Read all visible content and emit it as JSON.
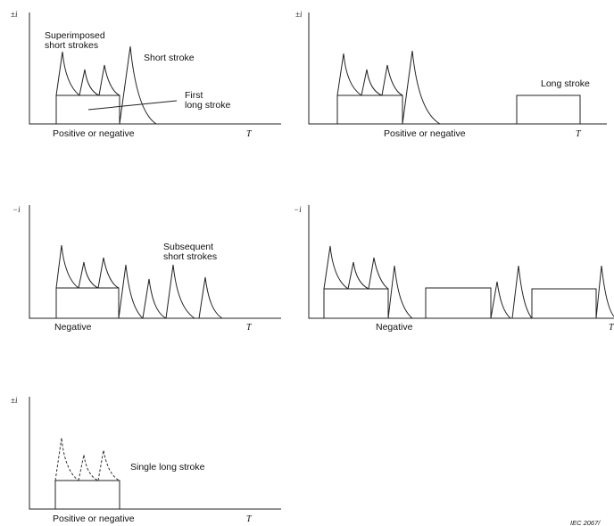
{
  "panels": {
    "p1": {
      "y_axis": "±i",
      "x_axis": "T",
      "polarity": "Positive or negative",
      "label_superimposed": "Superimposed",
      "label_superimposed_2": "short strokes",
      "label_short": "Short stroke",
      "label_first": "First",
      "label_first_2": "long stroke"
    },
    "p2": {
      "y_axis": "±i",
      "x_axis": "T",
      "polarity": "Positive or negative",
      "label_long": "Long stroke"
    },
    "p3": {
      "y_axis": "−i",
      "x_axis": "T",
      "polarity": "Negative",
      "label_subsequent": "Subsequent",
      "label_subsequent_2": "short strokes"
    },
    "p4": {
      "y_axis": "−i",
      "x_axis": "T",
      "polarity": "Negative"
    },
    "p5": {
      "y_axis": "±i",
      "x_axis": "T",
      "polarity": "Positive or negative",
      "label_single": "Single long stroke"
    }
  },
  "caption": "IEC  2067/"
}
